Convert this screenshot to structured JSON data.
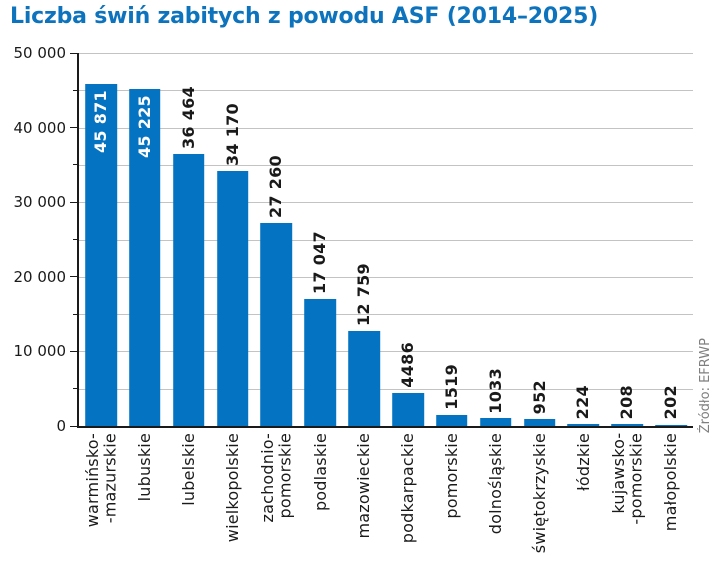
{
  "title": "Liczba świń zabitych z powodu ASF (2014–2025)",
  "source_note": "Źródło: EFRWP",
  "colors": {
    "bar": "#0473c2",
    "title": "#0d73bd",
    "grid": "#c3c3c3",
    "axis": "#1a1a1a",
    "text": "#1a1a1a",
    "inside_label": "#ffffff",
    "source": "#7f7f7f",
    "bg": "#ffffff"
  },
  "chart_data": {
    "type": "bar",
    "title": "Liczba świń zabitych z powodu ASF (2014–2025)",
    "xlabel": "",
    "ylabel": "",
    "ylim": [
      0,
      50000
    ],
    "grid": "horizontal",
    "grid_step": 5000,
    "y_major_step": 10000,
    "y_minor_step": 5000,
    "y_tick_labels": [
      "0",
      "10 000",
      "20 000",
      "30 000",
      "40 000",
      "50 000"
    ],
    "categories": [
      "warmińsko-\n-mazurskie",
      "lubuskie",
      "lubelskie",
      "wielkopolskie",
      "zachodnio-\npomorskie",
      "podlaskie",
      "mazowieckie",
      "podkarpackie",
      "pomorskie",
      "dolnośląskie",
      "świętokrzyskie",
      "łódzkie",
      "kujawsko-\n-pomorskie",
      "małopolskie"
    ],
    "values": [
      45871,
      45225,
      36464,
      34170,
      27260,
      17047,
      12759,
      4486,
      1519,
      1033,
      952,
      224,
      208,
      202
    ],
    "value_labels": [
      "45 871",
      "45 225",
      "36 464",
      "34 170",
      "27 260",
      "17 047",
      "12 759",
      "4486",
      "1519",
      "1033",
      "952",
      "224",
      "208",
      "202"
    ],
    "value_label_position": [
      "inside",
      "inside",
      "above",
      "above",
      "above",
      "above",
      "above",
      "above",
      "above",
      "above",
      "above",
      "above",
      "above",
      "above"
    ],
    "legend": "none",
    "source": "Źródło: EFRWP"
  }
}
